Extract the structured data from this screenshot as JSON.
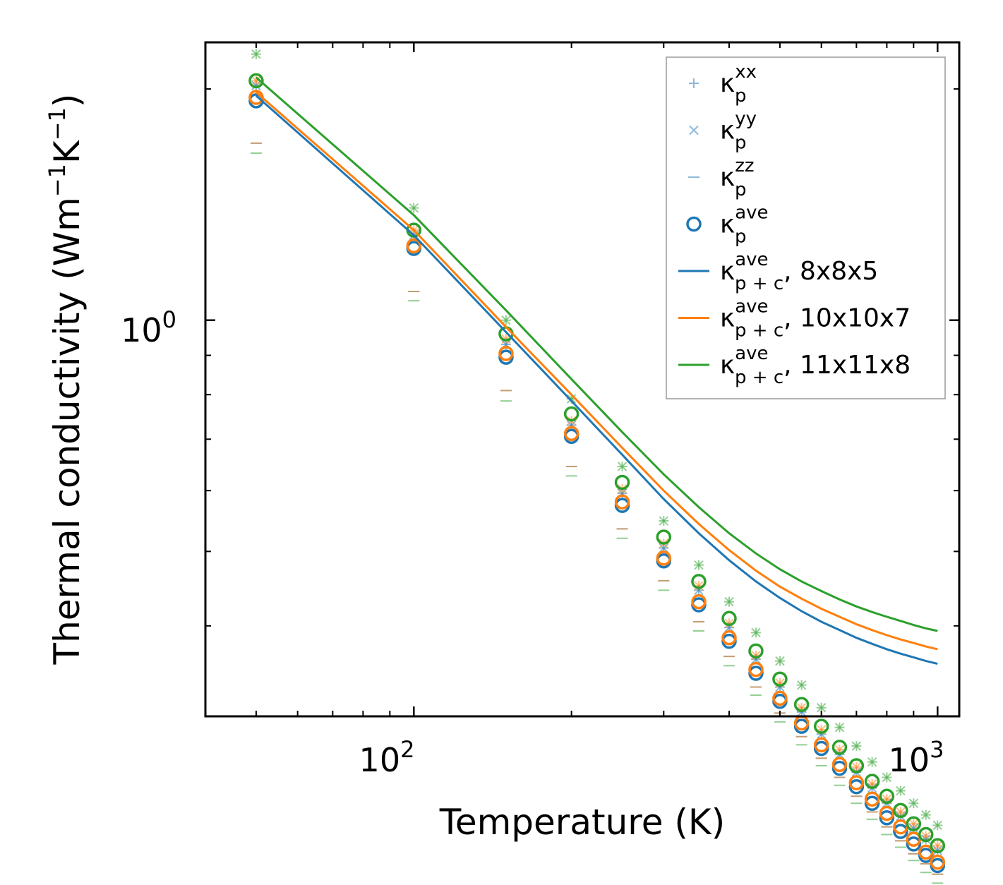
{
  "chart_data": {
    "type": "line",
    "scale": {
      "x": "log",
      "y": "log"
    },
    "xlabel": "Temperature (K)",
    "ylabel": {
      "main": "Thermal conductivity (Wm",
      "exp1": "−1",
      "mid": "K",
      "exp2": "−1",
      "close": ")"
    },
    "xlim": [
      40,
      1100
    ],
    "ylim": [
      0.305,
      2.3
    ],
    "x_ticks": [
      {
        "base": "10",
        "exp": "2",
        "value": 100
      },
      {
        "base": "10",
        "exp": "3",
        "value": 1000
      }
    ],
    "y_ticks": [
      {
        "base": "10",
        "exp": "0",
        "value": 1
      }
    ],
    "x": [
      50,
      100,
      150,
      200,
      250,
      300,
      350,
      400,
      450,
      500,
      550,
      600,
      650,
      700,
      750,
      800,
      850,
      900,
      950,
      1000
    ],
    "point_series": [
      {
        "name": "kp_xx",
        "component": "xx",
        "marker": "plus",
        "values_by_mesh": [
          [
            2.02,
            1.29,
            0.93,
            0.73,
            0.595,
            0.505,
            0.445,
            0.398,
            0.362,
            0.333,
            0.309,
            0.289,
            0.272,
            0.258,
            0.246,
            0.235,
            0.226,
            0.218,
            0.211,
            0.204
          ],
          [
            2.05,
            1.31,
            0.945,
            0.74,
            0.603,
            0.512,
            0.451,
            0.403,
            0.366,
            0.337,
            0.313,
            0.293,
            0.276,
            0.262,
            0.249,
            0.238,
            0.229,
            0.221,
            0.213,
            0.207
          ],
          [
            2.22,
            1.4,
            1.0,
            0.79,
            0.645,
            0.548,
            0.48,
            0.43,
            0.392,
            0.36,
            0.335,
            0.313,
            0.295,
            0.279,
            0.266,
            0.254,
            0.244,
            0.235,
            0.227,
            0.22
          ]
        ]
      },
      {
        "name": "kp_yy",
        "component": "yy",
        "marker": "cross",
        "values_by_mesh": [
          [
            2.02,
            1.29,
            0.93,
            0.73,
            0.595,
            0.505,
            0.445,
            0.398,
            0.362,
            0.333,
            0.309,
            0.289,
            0.272,
            0.258,
            0.246,
            0.235,
            0.226,
            0.218,
            0.211,
            0.204
          ],
          [
            2.05,
            1.31,
            0.945,
            0.74,
            0.603,
            0.512,
            0.451,
            0.403,
            0.366,
            0.337,
            0.313,
            0.293,
            0.276,
            0.262,
            0.249,
            0.238,
            0.229,
            0.221,
            0.213,
            0.207
          ],
          [
            2.22,
            1.4,
            1.0,
            0.79,
            0.645,
            0.548,
            0.48,
            0.43,
            0.392,
            0.36,
            0.335,
            0.313,
            0.295,
            0.279,
            0.266,
            0.254,
            0.244,
            0.235,
            0.227,
            0.22
          ]
        ]
      },
      {
        "name": "kp_zz",
        "component": "zz",
        "marker": "hline",
        "values_by_mesh": [
          [
            1.7,
            1.09,
            0.81,
            0.645,
            0.535,
            0.458,
            0.405,
            0.365,
            0.333,
            0.308,
            0.287,
            0.269,
            0.254,
            0.24,
            0.229,
            0.219,
            0.21,
            0.202,
            0.196,
            0.19
          ],
          [
            1.7,
            1.09,
            0.81,
            0.645,
            0.535,
            0.458,
            0.405,
            0.365,
            0.333,
            0.308,
            0.287,
            0.269,
            0.254,
            0.24,
            0.229,
            0.219,
            0.21,
            0.202,
            0.196,
            0.19
          ],
          [
            1.65,
            1.06,
            0.785,
            0.627,
            0.52,
            0.445,
            0.394,
            0.355,
            0.325,
            0.3,
            0.28,
            0.263,
            0.248,
            0.235,
            0.224,
            0.214,
            0.206,
            0.198,
            0.191,
            0.185
          ]
        ]
      },
      {
        "name": "kp_ave",
        "component": "ave",
        "marker": "circle",
        "values_by_mesh": [
          [
            1.93,
            1.24,
            0.895,
            0.706,
            0.574,
            0.486,
            0.426,
            0.382,
            0.347,
            0.319,
            0.296,
            0.277,
            0.261,
            0.247,
            0.235,
            0.225,
            0.216,
            0.208,
            0.201,
            0.195
          ],
          [
            1.95,
            1.25,
            0.905,
            0.712,
            0.58,
            0.49,
            0.43,
            0.386,
            0.351,
            0.322,
            0.299,
            0.28,
            0.264,
            0.25,
            0.238,
            0.228,
            0.219,
            0.211,
            0.203,
            0.197
          ],
          [
            2.05,
            1.31,
            0.96,
            0.755,
            0.615,
            0.522,
            0.457,
            0.409,
            0.371,
            0.341,
            0.316,
            0.296,
            0.278,
            0.263,
            0.251,
            0.24,
            0.23,
            0.221,
            0.214,
            0.207
          ]
        ]
      }
    ],
    "line_series": [
      {
        "name": "kpc_ave_8x8x5",
        "color": "#1f77b4",
        "values": [
          1.96,
          1.29,
          0.965,
          0.785,
          0.668,
          0.585,
          0.528,
          0.487,
          0.457,
          0.435,
          0.418,
          0.405,
          0.395,
          0.386,
          0.379,
          0.373,
          0.368,
          0.364,
          0.36,
          0.357
        ]
      },
      {
        "name": "kpc_ave_10x10x7",
        "color": "#ff7f0e",
        "values": [
          1.98,
          1.31,
          0.98,
          0.8,
          0.682,
          0.6,
          0.543,
          0.502,
          0.472,
          0.45,
          0.434,
          0.421,
          0.411,
          0.402,
          0.395,
          0.389,
          0.384,
          0.38,
          0.376,
          0.373
        ]
      },
      {
        "name": "kpc_ave_11x11x8",
        "color": "#2ca02c",
        "values": [
          2.07,
          1.37,
          1.03,
          0.838,
          0.715,
          0.63,
          0.571,
          0.528,
          0.497,
          0.474,
          0.457,
          0.444,
          0.433,
          0.424,
          0.417,
          0.411,
          0.406,
          0.401,
          0.397,
          0.394
        ]
      }
    ],
    "mesh_colors": [
      "#1f77b4",
      "#ff7f0e",
      "#2ca02c"
    ],
    "legend": {
      "position": "top-right",
      "entries": [
        {
          "symbol": "κ",
          "sub": "p",
          "sup": "xx",
          "suffix": "",
          "marker": "plus",
          "color": "#1f77b4"
        },
        {
          "symbol": "κ",
          "sub": "p",
          "sup": "yy",
          "suffix": "",
          "marker": "cross",
          "color": "#1f77b4"
        },
        {
          "symbol": "κ",
          "sub": "p",
          "sup": "zz",
          "suffix": "",
          "marker": "hline",
          "color": "#1f77b4"
        },
        {
          "symbol": "κ",
          "sub": "p",
          "sup": "ave",
          "suffix": "",
          "marker": "circle",
          "color": "#1f77b4"
        },
        {
          "symbol": "κ",
          "sub": "p + c",
          "sup": "ave",
          "suffix": ", 8x8x5",
          "marker": "line",
          "color": "#1f77b4"
        },
        {
          "symbol": "κ",
          "sub": "p + c",
          "sup": "ave",
          "suffix": ", 10x10x7",
          "marker": "line",
          "color": "#ff7f0e"
        },
        {
          "symbol": "κ",
          "sub": "p + c",
          "sup": "ave",
          "suffix": ", 11x11x8",
          "marker": "line",
          "color": "#2ca02c"
        }
      ]
    }
  }
}
